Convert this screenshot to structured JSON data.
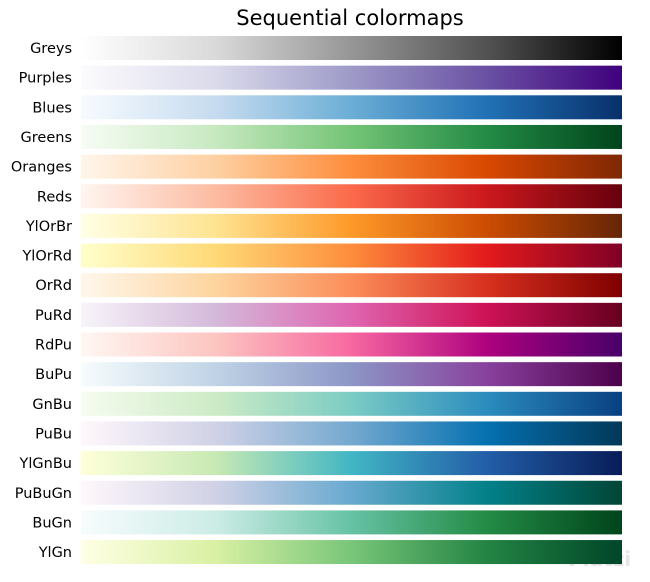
{
  "chart_data": {
    "type": "colormaps",
    "title": "Sequential colormaps",
    "colormaps": [
      {
        "name": "Greys",
        "colors": [
          "#ffffff",
          "#d9d9d9",
          "#969696",
          "#525252",
          "#000000"
        ]
      },
      {
        "name": "Purples",
        "colors": [
          "#fcfbfd",
          "#dadaeb",
          "#9e9ac8",
          "#6a51a3",
          "#3f007d"
        ]
      },
      {
        "name": "Blues",
        "colors": [
          "#f7fbff",
          "#c6dbef",
          "#6baed6",
          "#2171b5",
          "#08306b"
        ]
      },
      {
        "name": "Greens",
        "colors": [
          "#f7fcf5",
          "#c7e9c0",
          "#74c476",
          "#238b45",
          "#00441b"
        ]
      },
      {
        "name": "Oranges",
        "colors": [
          "#fff5eb",
          "#fdd0a2",
          "#fd8d3c",
          "#d94801",
          "#7f2704"
        ]
      },
      {
        "name": "Reds",
        "colors": [
          "#fff5f0",
          "#fcbba1",
          "#fb6a4a",
          "#cb181d",
          "#67000d"
        ]
      },
      {
        "name": "YlOrBr",
        "colors": [
          "#ffffe5",
          "#fee391",
          "#fe9929",
          "#cc4c02",
          "#662506"
        ]
      },
      {
        "name": "YlOrRd",
        "colors": [
          "#ffffcc",
          "#fed976",
          "#fd8d3c",
          "#e31a1c",
          "#800026"
        ]
      },
      {
        "name": "OrRd",
        "colors": [
          "#fff7ec",
          "#fdd49e",
          "#fc8d59",
          "#d7301f",
          "#7f0000"
        ]
      },
      {
        "name": "PuRd",
        "colors": [
          "#f7f4f9",
          "#d4b9da",
          "#df65b0",
          "#ce1256",
          "#67001f"
        ]
      },
      {
        "name": "RdPu",
        "colors": [
          "#fff7f3",
          "#fcc5c0",
          "#f768a1",
          "#ae017e",
          "#49006a"
        ]
      },
      {
        "name": "BuPu",
        "colors": [
          "#f7fcfd",
          "#bfd3e6",
          "#8c96c6",
          "#88419d",
          "#4d004b"
        ]
      },
      {
        "name": "GnBu",
        "colors": [
          "#f7fcf0",
          "#ccebc5",
          "#7bccc4",
          "#2b8cbe",
          "#084081"
        ]
      },
      {
        "name": "PuBu",
        "colors": [
          "#fff7fb",
          "#d0d1e6",
          "#74a9cf",
          "#0570b0",
          "#023858"
        ]
      },
      {
        "name": "YlGnBu",
        "colors": [
          "#ffffd9",
          "#c7e9b4",
          "#41b6c4",
          "#225ea8",
          "#081d58"
        ]
      },
      {
        "name": "PuBuGn",
        "colors": [
          "#fff7fb",
          "#d0d1e6",
          "#67a9cf",
          "#02818a",
          "#014636"
        ]
      },
      {
        "name": "BuGn",
        "colors": [
          "#f7fcfd",
          "#ccece6",
          "#66c2a4",
          "#238b45",
          "#00441b"
        ]
      },
      {
        "name": "YlGn",
        "colors": [
          "#ffffe5",
          "#d9f0a3",
          "#78c679",
          "#238443",
          "#004529"
        ]
      }
    ],
    "watermark": "Platzi"
  }
}
